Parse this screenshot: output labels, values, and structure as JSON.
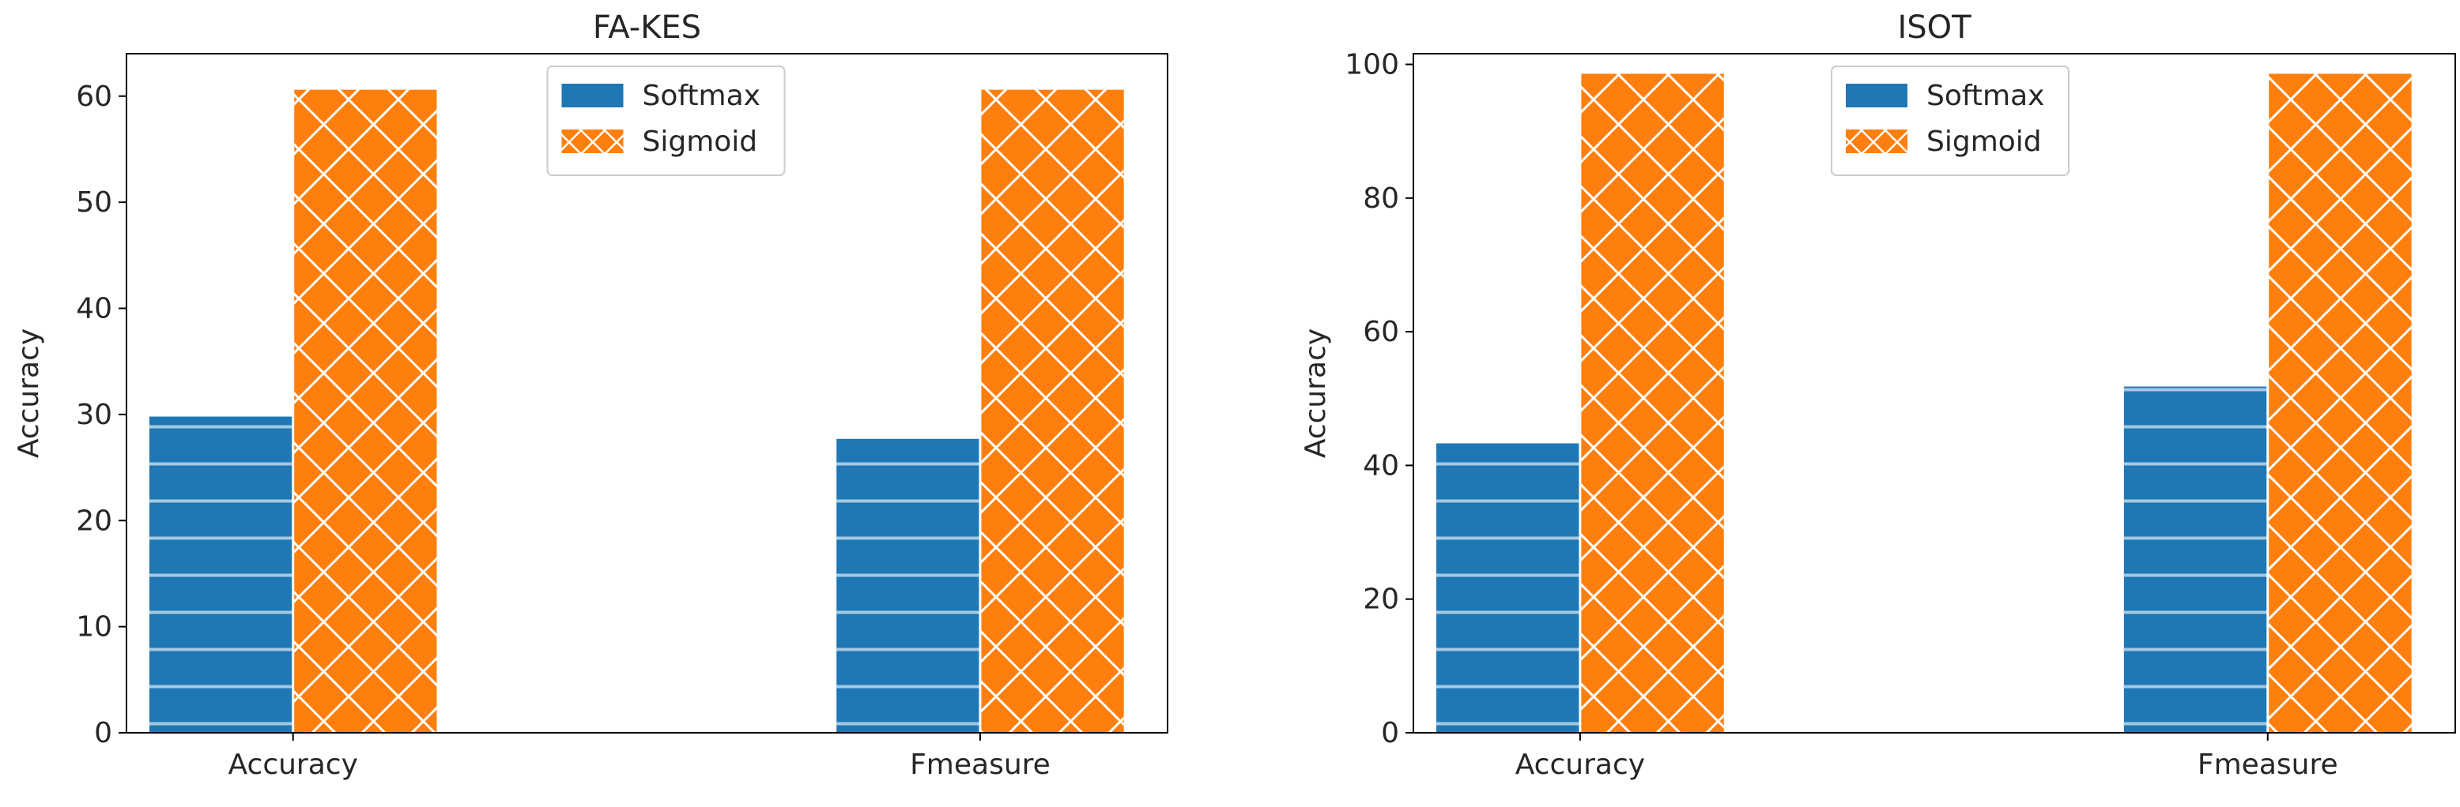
{
  "colors": {
    "softmax": "#1f77b4",
    "sigmoid": "#ff7f0e",
    "hatch": "#ffffff",
    "axis": "#000000",
    "text": "#262626"
  },
  "chart_data": [
    {
      "type": "bar",
      "title": "FA-KES",
      "xlabel": "",
      "ylabel": "Accuracy",
      "categories": [
        "Accuracy",
        "Fmeasure"
      ],
      "series": [
        {
          "name": "Softmax",
          "values": [
            29.8,
            27.7
          ],
          "hatch": "horizontal-lines"
        },
        {
          "name": "Sigmoid",
          "values": [
            60.6,
            60.6
          ],
          "hatch": "crosshatch"
        }
      ],
      "ylim": [
        0,
        64
      ],
      "yticks": [
        0,
        10,
        20,
        30,
        40,
        50,
        60
      ],
      "legend": "upper-center",
      "grid": false
    },
    {
      "type": "bar",
      "title": "ISOT",
      "xlabel": "",
      "ylabel": "Accuracy",
      "categories": [
        "Accuracy",
        "Fmeasure"
      ],
      "series": [
        {
          "name": "Softmax",
          "values": [
            43.3,
            51.8
          ],
          "hatch": "horizontal-lines"
        },
        {
          "name": "Sigmoid",
          "values": [
            98.6,
            98.6
          ],
          "hatch": "crosshatch"
        }
      ],
      "ylim": [
        0,
        101.6
      ],
      "yticks": [
        0,
        20,
        40,
        60,
        80,
        100
      ],
      "legend": "upper-center",
      "grid": false
    }
  ]
}
